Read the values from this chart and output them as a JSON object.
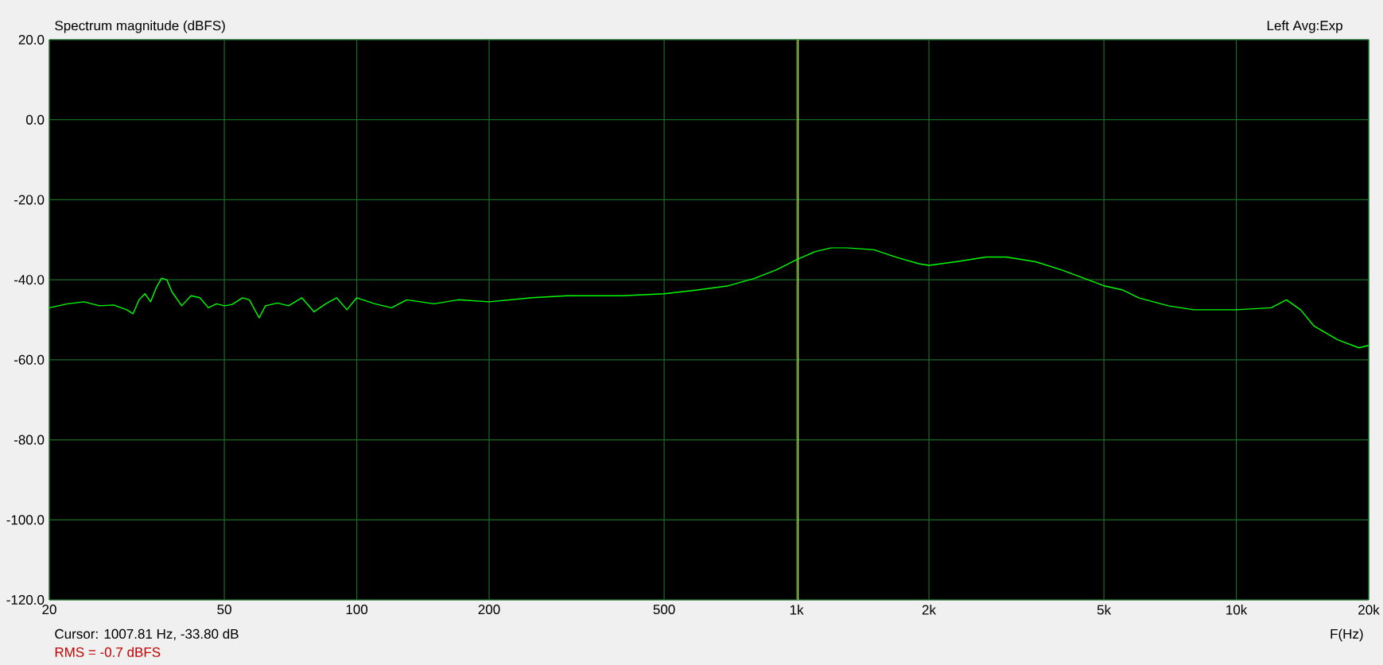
{
  "chart_data": {
    "type": "line",
    "title": "Spectrum magnitude (dBFS)",
    "subtitle": "Left  Avg:Exp",
    "xlabel": "F(Hz)",
    "annotations": [
      "Cursor: 1007.81 Hz, -33.80 dB",
      "RMS = -0.7 dBFS"
    ],
    "log": "x",
    "grid": true,
    "xlim": [
      20,
      20000
    ],
    "ylim": [
      -120,
      20
    ],
    "xticks": [
      20,
      50,
      100,
      200,
      500,
      {
        "value": 1000,
        "label": "1k"
      },
      {
        "value": 2000,
        "label": "2k"
      },
      {
        "value": 5000,
        "label": "5k"
      },
      {
        "value": 10000,
        "label": "10k"
      },
      {
        "value": 20000,
        "label": "20k"
      }
    ],
    "yticks": [
      {
        "value": -120,
        "label": "-120.0"
      },
      {
        "value": -100,
        "label": "-100.0"
      },
      {
        "value": -80,
        "label": "-80.0"
      },
      {
        "value": -60,
        "label": "-60.0"
      },
      {
        "value": -40,
        "label": "-40.0"
      },
      {
        "value": -20,
        "label": "-20.0"
      },
      {
        "value": 0,
        "label": "0.0"
      },
      {
        "value": 20,
        "label": "20.0"
      }
    ],
    "ref_lines": [
      {
        "axis": "x",
        "value": 1007.81,
        "color": "#c8d850"
      }
    ],
    "series": [
      {
        "color": "#00ff00",
        "x": [
          20,
          22,
          24,
          26,
          28,
          30,
          31,
          32,
          33,
          34,
          35,
          36,
          37,
          38,
          40,
          42,
          44,
          46,
          48,
          50,
          52,
          55,
          57,
          60,
          62,
          66,
          70,
          75,
          80,
          85,
          90,
          95,
          100,
          110,
          120,
          130,
          150,
          170,
          200,
          250,
          300,
          400,
          500,
          600,
          700,
          800,
          900,
          1000,
          1100,
          1200,
          1300,
          1500,
          1700,
          1900,
          2000,
          2300,
          2700,
          3000,
          3500,
          4000,
          5000,
          5500,
          6000,
          7000,
          8000,
          10000,
          12000,
          13000,
          14000,
          15000,
          17000,
          19000,
          20000
        ],
        "values": [
          -47,
          -46,
          -45.5,
          -46.5,
          -46.3,
          -47.5,
          -48.5,
          -45,
          -43.5,
          -45.5,
          -42,
          -39.6,
          -40,
          -43,
          -46.5,
          -44,
          -44.5,
          -47,
          -46,
          -46.5,
          -46.2,
          -44.5,
          -45,
          -49.5,
          -46.5,
          -45.8,
          -46.5,
          -44.5,
          -48,
          -46,
          -44.5,
          -47.5,
          -44.5,
          -46,
          -47,
          -45,
          -46,
          -45,
          -45.5,
          -44.5,
          -44,
          -44,
          -43.5,
          -42.5,
          -41.5,
          -39.7,
          -37.5,
          -35,
          -33,
          -32,
          -32,
          -32.5,
          -34.5,
          -36,
          -36.4,
          -35.5,
          -34.3,
          -34.3,
          -35.5,
          -37.5,
          -41.5,
          -42.5,
          -44.5,
          -46.5,
          -47.5,
          -47.5,
          -47,
          -45,
          -47.5,
          -51.5,
          -55,
          -57,
          -56.4
        ]
      }
    ]
  }
}
